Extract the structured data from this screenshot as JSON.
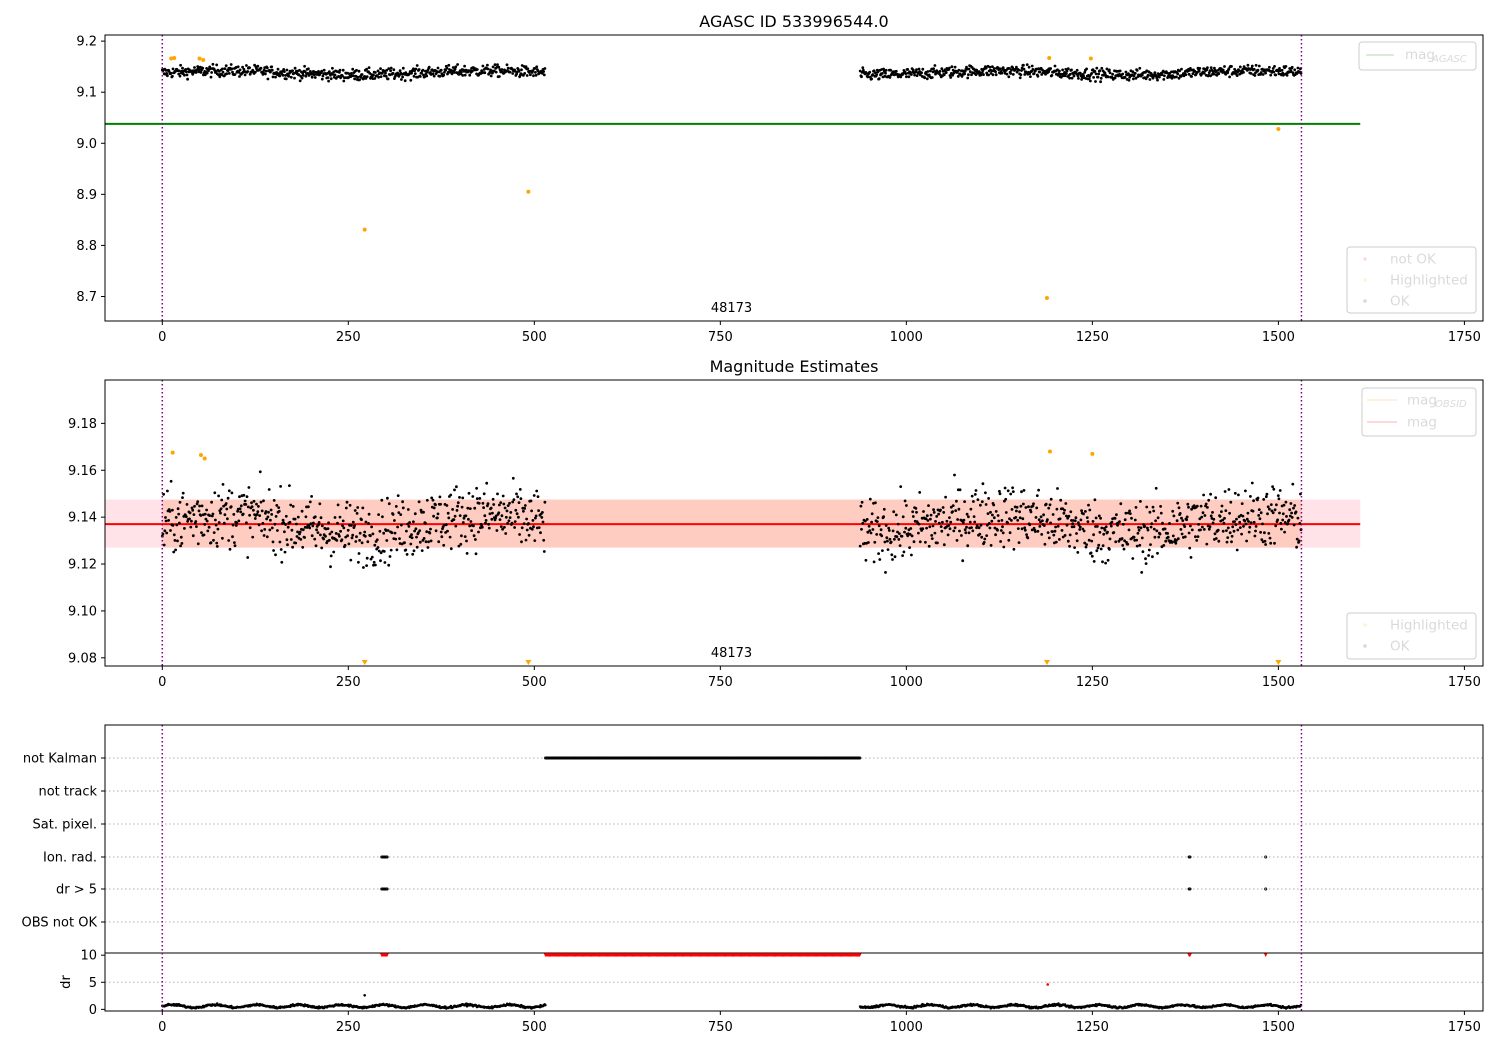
{
  "chart_data": [
    {
      "type": "scatter",
      "title": "AGASC ID 533996544.0",
      "annotation": "48173",
      "xlim": [
        -77,
        1775
      ],
      "ylim": [
        8.652,
        9.212
      ],
      "xticks": [
        0,
        250,
        500,
        750,
        1000,
        1250,
        1500,
        1750
      ],
      "yticks": [
        9.2,
        9.1,
        9.0,
        8.9,
        8.8,
        8.7
      ],
      "ytick_labels": [
        "9.2",
        "9.1",
        "9.0",
        "8.9",
        "8.8",
        "8.7"
      ],
      "vlines": [
        0,
        1531
      ],
      "hline": {
        "y": 9.038,
        "x_range": [
          -77,
          1610
        ],
        "color": "#008000"
      },
      "segments": [
        {
          "x_range": [
            0,
            515
          ],
          "center": 9.138,
          "spread": 0.008
        },
        {
          "x_range": [
            938,
            1531
          ],
          "center": 9.138,
          "spread": 0.008
        }
      ],
      "series": [
        {
          "name": "OK",
          "color": "#000000"
        },
        {
          "name": "Highlighted",
          "color": "#ffa500",
          "points": [
            [
              12,
              9.166
            ],
            [
              16,
              9.167
            ],
            [
              50,
              9.166
            ],
            [
              55,
              9.163
            ],
            [
              272,
              8.831
            ],
            [
              492,
              8.905
            ],
            [
              1189,
              8.697
            ],
            [
              1192,
              9.167
            ],
            [
              1248,
              9.166
            ],
            [
              1500,
              9.028
            ]
          ]
        },
        {
          "name": "not OK",
          "color": "#ff0000",
          "points": []
        }
      ],
      "legend": {
        "upper_right": [
          {
            "label": "mag",
            "subscript": "AGASC"
          }
        ],
        "lower_right": [
          "not OK",
          "Highlighted",
          "OK"
        ]
      }
    },
    {
      "type": "scatter",
      "title": "Magnitude Estimates",
      "annotation": "48173",
      "xlim": [
        -77,
        1775
      ],
      "ylim": [
        9.0765,
        9.1985
      ],
      "xticks": [
        0,
        250,
        500,
        750,
        1000,
        1250,
        1500,
        1750
      ],
      "yticks": [
        9.18,
        9.16,
        9.14,
        9.12,
        9.1,
        9.08
      ],
      "ytick_labels": [
        "9.18",
        "9.16",
        "9.14",
        "9.12",
        "9.10",
        "9.08"
      ],
      "vlines": [
        0,
        1531
      ],
      "hline": {
        "y": 9.137,
        "x_range": [
          -77,
          1610
        ],
        "color": "#ff0000"
      },
      "bands": [
        {
          "y_range": [
            9.127,
            9.1475
          ],
          "x_range": [
            -77,
            1610
          ],
          "color": "#ffc0cb"
        },
        {
          "y_range": [
            9.127,
            9.1475
          ],
          "x_range": [
            0,
            1531
          ],
          "color": "#ffa07a"
        }
      ],
      "segments": [
        {
          "x_range": [
            0,
            515
          ],
          "center": 9.137,
          "spread": 0.0095
        },
        {
          "x_range": [
            938,
            1531
          ],
          "center": 9.137,
          "spread": 0.0095
        }
      ],
      "series": [
        {
          "name": "OK",
          "color": "#000000"
        },
        {
          "name": "Highlighted",
          "color": "#ffa500",
          "points": [
            [
              14,
              9.1675
            ],
            [
              52,
              9.1665
            ],
            [
              57,
              9.165
            ],
            [
              1193,
              9.168
            ],
            [
              1250,
              9.167
            ]
          ]
        }
      ],
      "out_of_range_markers": [
        272,
        492,
        1189,
        1500
      ],
      "legend": {
        "upper_right": [
          {
            "label": "mag",
            "subscript": "OBSID",
            "color": "#ffa500"
          },
          {
            "label": "mag",
            "subscript": "",
            "color": "#ff0000"
          }
        ],
        "lower_right": [
          "Highlighted",
          "OK"
        ]
      }
    },
    {
      "type": "scatter",
      "title": "",
      "xlim": [
        -77,
        1775
      ],
      "xticks": [
        0,
        250,
        500,
        750,
        1000,
        1250,
        1500,
        1750
      ],
      "vlines": [
        0,
        1531
      ],
      "flag_rows": [
        "not Kalman",
        "not track",
        "Sat. pixel.",
        "Ion. rad.",
        "dr > 5",
        "OBS not OK"
      ],
      "flags": {
        "not Kalman": [
          [
            515,
            938
          ]
        ],
        "not track": [],
        "Sat. pixel.": [],
        "Ion. rad.": [
          [
            295,
            303
          ],
          [
            1380,
            1382
          ],
          [
            1483,
            1484
          ]
        ],
        "dr > 5": [
          [
            295,
            303
          ],
          [
            1380,
            1382
          ],
          [
            1483,
            1484
          ]
        ],
        "OBS not OK": []
      },
      "dr_ylabel": "dr",
      "dr_ylim": [
        -0.3,
        10.4
      ],
      "dr_yticks": [
        0,
        5,
        10
      ],
      "dr_capped_at_10": [
        [
          295,
          303
        ],
        [
          515,
          938
        ],
        [
          1380,
          1382
        ],
        [
          1483,
          1484
        ]
      ],
      "dr_outliers": [
        [
          272,
          2.6
        ],
        [
          1190,
          4.6
        ]
      ],
      "dr_segments": [
        {
          "x_range": [
            0,
            515
          ],
          "center": 0.6
        },
        {
          "x_range": [
            938,
            1531
          ],
          "center": 0.6
        }
      ]
    }
  ]
}
